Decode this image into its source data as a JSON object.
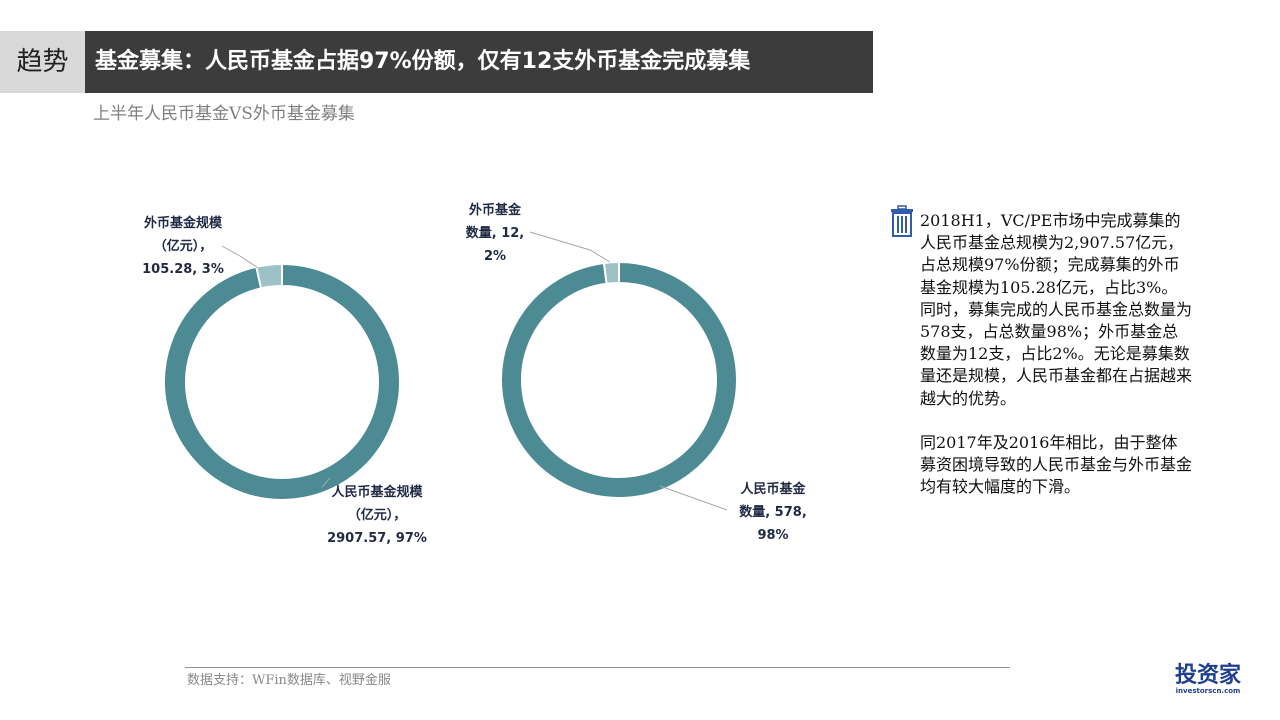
{
  "header": {
    "tag": "趋势",
    "title": "基金募集：人民币基金占据97%份额，仅有12支外币基金完成募集",
    "subtitle": "上半年人民币基金VS外币基金募集"
  },
  "chart_data": [
    {
      "type": "pie",
      "donut": true,
      "slices": [
        {
          "name": "人民币基金规模（亿元）",
          "value": 2907.57,
          "percent": 97,
          "label": [
            "人民币基金规模",
            "（亿元），",
            "2907.57, 97%"
          ],
          "color": "#4d8b94"
        },
        {
          "name": "外币基金规模（亿元）",
          "value": 105.28,
          "percent": 3,
          "label": [
            "外币基金规模",
            "（亿元），",
            "105.28, 3%"
          ],
          "color": "#9cc1c6"
        }
      ]
    },
    {
      "type": "pie",
      "donut": true,
      "slices": [
        {
          "name": "人民币基金数量",
          "value": 578,
          "percent": 98,
          "label": [
            "人民币基金",
            "数量, 578,",
            "98%"
          ],
          "color": "#4d8b94"
        },
        {
          "name": "外币基金数量",
          "value": 12,
          "percent": 2,
          "label": [
            "外币基金",
            "数量, 12,",
            "2%"
          ],
          "color": "#9cc1c6"
        }
      ]
    }
  ],
  "description": {
    "icon": "trash-bin-icon",
    "paragraphs": [
      "2018H1，VC/PE市场中完成募集的人民币基金总规模为2,907.57亿元，占总规模97%份额；完成募集的外币基金规模为105.28亿元，占比3%。同时，募集完成的人民币基金总数量为578支，占总数量98%；外币基金总数量为12支，占比2%。无论是募集数量还是规模，人民币基金都在占据越来越大的优势。",
      "同2017年及2016年相比，由于整体募资困境导致的人民币基金与外币基金均有较大幅度的下滑。"
    ]
  },
  "footer": {
    "source": "数据支持：WFin数据库、视野金服",
    "logo": "投资家",
    "logo_sub": "investorscn.com"
  }
}
